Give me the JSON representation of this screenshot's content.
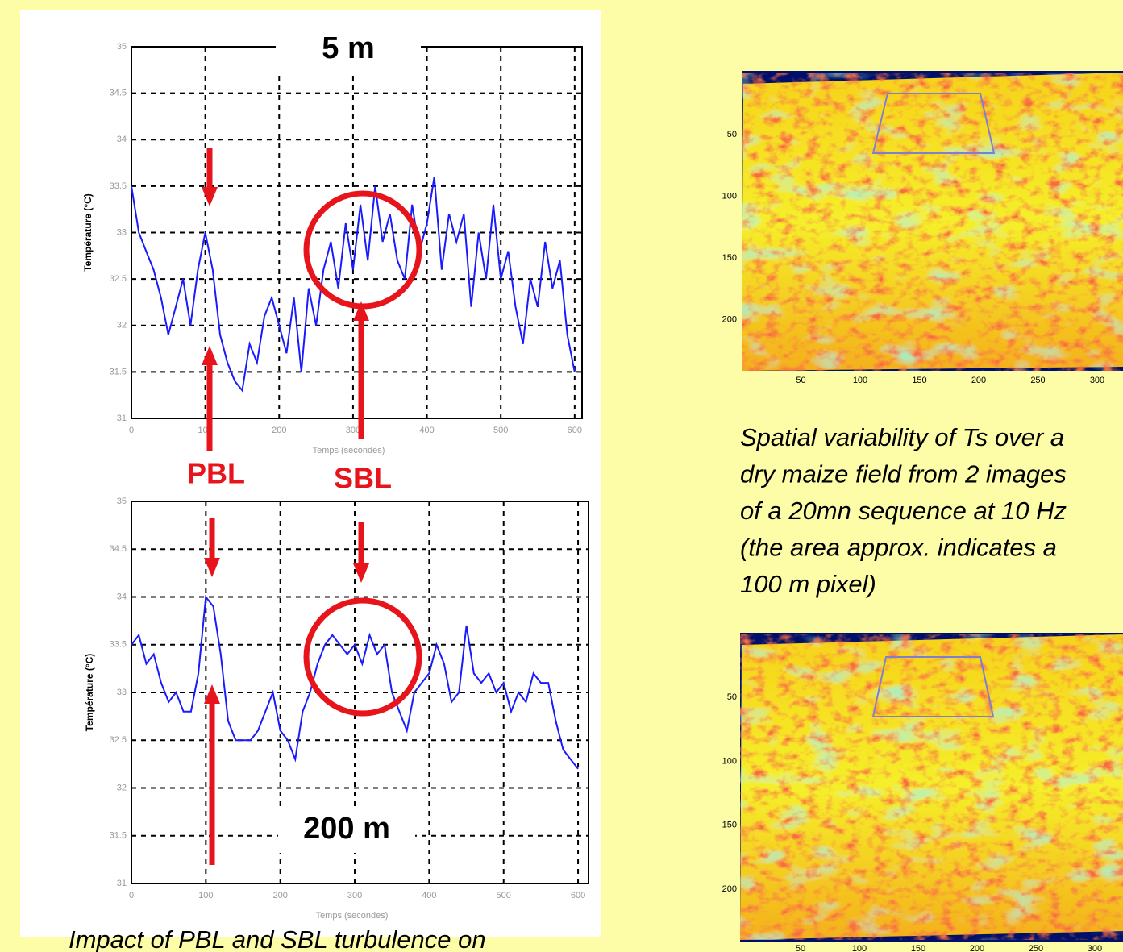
{
  "chart_data": [
    {
      "type": "line",
      "title": "5 m",
      "ylabel": "Température (°C)",
      "xlabel": "Temps (secondes)",
      "color": "#1a1aff",
      "grid": true,
      "xlim": [
        0,
        610
      ],
      "ylim": [
        31,
        35
      ],
      "xticks": [
        0,
        100,
        200,
        300,
        400,
        500,
        600
      ],
      "yticks": [
        31,
        31.5,
        32,
        32.5,
        33,
        33.5,
        34,
        34.5,
        35
      ],
      "annotations": [
        "PBL",
        "SBL"
      ],
      "x": [
        0,
        10,
        20,
        30,
        40,
        50,
        60,
        70,
        80,
        90,
        100,
        110,
        120,
        130,
        140,
        150,
        160,
        170,
        180,
        190,
        200,
        210,
        220,
        230,
        240,
        250,
        260,
        270,
        280,
        290,
        300,
        310,
        320,
        330,
        340,
        350,
        360,
        370,
        380,
        390,
        400,
        410,
        420,
        430,
        440,
        450,
        460,
        470,
        480,
        490,
        500,
        510,
        520,
        530,
        540,
        550,
        560,
        570,
        580,
        590,
        600
      ],
      "values": [
        33.5,
        33.0,
        32.8,
        32.6,
        32.3,
        31.9,
        32.2,
        32.5,
        32.0,
        32.6,
        33.0,
        32.6,
        31.9,
        31.6,
        31.4,
        31.3,
        31.8,
        31.6,
        32.1,
        32.3,
        32.0,
        31.7,
        32.3,
        31.5,
        32.4,
        32.0,
        32.6,
        32.9,
        32.4,
        33.1,
        32.6,
        33.3,
        32.7,
        33.5,
        32.9,
        33.2,
        32.7,
        32.5,
        33.3,
        32.8,
        33.1,
        33.6,
        32.6,
        33.2,
        32.9,
        33.2,
        32.2,
        33.0,
        32.5,
        33.3,
        32.5,
        32.8,
        32.2,
        31.8,
        32.5,
        32.2,
        32.9,
        32.4,
        32.7,
        31.9,
        31.5
      ]
    },
    {
      "type": "line",
      "title": "200 m",
      "ylabel": "Température (°C)",
      "xlabel": "Temps (secondes)",
      "color": "#1a1aff",
      "grid": true,
      "xlim": [
        0,
        614
      ],
      "ylim": [
        31,
        35
      ],
      "xticks": [
        0,
        100,
        200,
        300,
        400,
        500,
        600
      ],
      "yticks": [
        31,
        31.5,
        32,
        32.5,
        33,
        33.5,
        34,
        34.5,
        35
      ],
      "x": [
        0,
        10,
        20,
        30,
        40,
        50,
        60,
        70,
        80,
        90,
        100,
        110,
        120,
        130,
        140,
        150,
        160,
        170,
        180,
        190,
        200,
        210,
        220,
        230,
        240,
        250,
        260,
        270,
        280,
        290,
        300,
        310,
        320,
        330,
        340,
        350,
        360,
        370,
        380,
        390,
        400,
        410,
        420,
        430,
        440,
        450,
        460,
        470,
        480,
        490,
        500,
        510,
        520,
        530,
        540,
        550,
        560,
        570,
        580,
        590,
        600
      ],
      "values": [
        33.5,
        33.6,
        33.3,
        33.4,
        33.1,
        32.9,
        33.0,
        32.8,
        32.8,
        33.2,
        34.0,
        33.9,
        33.4,
        32.7,
        32.5,
        32.5,
        32.5,
        32.6,
        32.8,
        33.0,
        32.6,
        32.5,
        32.3,
        32.8,
        33.0,
        33.3,
        33.5,
        33.6,
        33.5,
        33.4,
        33.5,
        33.3,
        33.6,
        33.4,
        33.5,
        33.0,
        32.8,
        32.6,
        33.0,
        33.1,
        33.2,
        33.5,
        33.3,
        32.9,
        33.0,
        33.7,
        33.2,
        33.1,
        33.2,
        33.0,
        33.1,
        32.8,
        33.0,
        32.9,
        33.2,
        33.1,
        33.1,
        32.7,
        32.4,
        32.3,
        32.2
      ]
    }
  ],
  "left_caption": "Impact of PBL and SBL turbulence on",
  "images": [
    {
      "xticks": [
        50,
        100,
        150,
        200,
        250,
        300
      ],
      "yticks": [
        50,
        100,
        150,
        200
      ]
    },
    {
      "xticks": [
        50,
        100,
        150,
        200,
        250,
        300
      ],
      "yticks": [
        50,
        100,
        150,
        200
      ]
    }
  ],
  "right_caption": [
    "Spatial variability of Ts over a",
    "dry maize field from 2 images",
    "of a 20mn sequence at 10 Hz",
    "(the area approx. indicates a",
    "100 m pixel)"
  ]
}
